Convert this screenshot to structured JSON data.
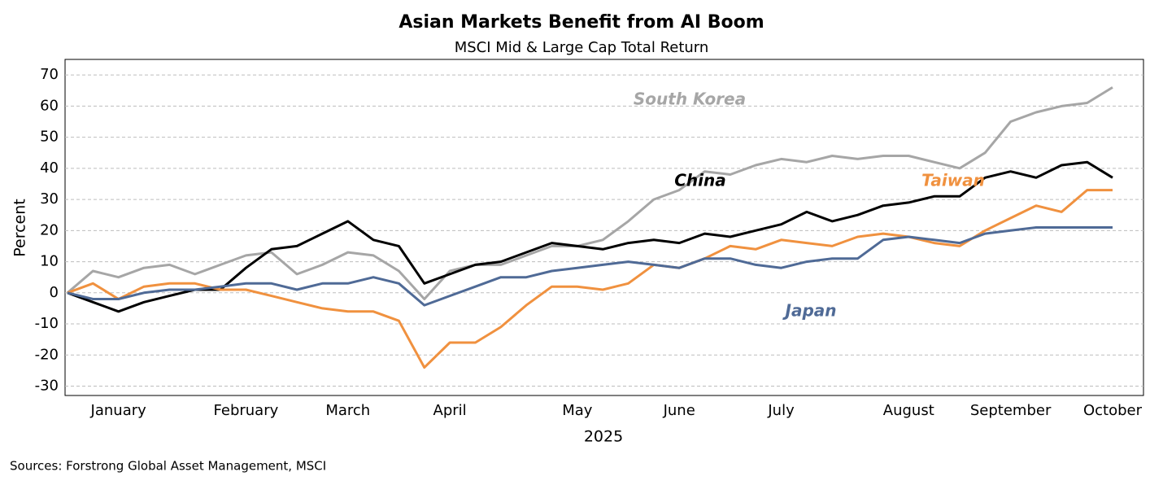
{
  "chart_data": {
    "type": "line",
    "title": "Asian Markets Benefit from AI Boom",
    "subtitle": "MSCI Mid & Large Cap Total Return",
    "y_label": "Percent",
    "x_label": "2025",
    "source": "Sources: Forstrong Global Asset Management, MSCI",
    "categories": [
      null,
      null,
      "January",
      null,
      null,
      null,
      null,
      "February",
      null,
      null,
      null,
      "March",
      null,
      null,
      null,
      "April",
      null,
      null,
      null,
      null,
      "May",
      null,
      null,
      null,
      "June",
      null,
      null,
      null,
      "July",
      null,
      null,
      null,
      null,
      "August",
      null,
      null,
      null,
      "September",
      null,
      null,
      null,
      "October"
    ],
    "series": [
      {
        "name": "South Korea",
        "color": "#a6a6a6",
        "values": [
          0,
          7,
          5,
          8,
          9,
          6,
          9,
          12,
          13,
          6,
          9,
          13,
          12,
          7,
          -2,
          7,
          9,
          9,
          12,
          15,
          15,
          17,
          23,
          30,
          33,
          39,
          38,
          41,
          43,
          42,
          44,
          43,
          44,
          44,
          42,
          40,
          45,
          55,
          58,
          60,
          61,
          66
        ]
      },
      {
        "name": "China",
        "color": "#000000",
        "values": [
          0,
          -3,
          -6,
          -3,
          -1,
          1,
          1,
          8,
          14,
          15,
          19,
          23,
          17,
          15,
          3,
          6,
          9,
          10,
          13,
          16,
          15,
          14,
          16,
          17,
          16,
          19,
          18,
          20,
          22,
          26,
          23,
          25,
          28,
          29,
          31,
          31,
          37,
          39,
          37,
          41,
          42,
          37
        ]
      },
      {
        "name": "Taiwan",
        "color": "#f0913f",
        "values": [
          0,
          3,
          -2,
          2,
          3,
          3,
          1,
          1,
          -1,
          -3,
          -5,
          -6,
          -6,
          -9,
          -24,
          -16,
          -16,
          -11,
          -4,
          2,
          2,
          1,
          3,
          9,
          8,
          11,
          15,
          14,
          17,
          16,
          15,
          18,
          19,
          18,
          16,
          15,
          20,
          24,
          28,
          26,
          33,
          33
        ]
      },
      {
        "name": "Japan",
        "color": "#4f6a96",
        "values": [
          0,
          -2,
          -2,
          0,
          1,
          1,
          2,
          3,
          3,
          1,
          3,
          3,
          5,
          3,
          -4,
          -1,
          2,
          5,
          5,
          7,
          8,
          9,
          10,
          9,
          8,
          11,
          11,
          9,
          8,
          10,
          11,
          11,
          17,
          18,
          17,
          16,
          19,
          20,
          21,
          21,
          21,
          21
        ]
      }
    ],
    "ylim": [
      -33,
      75
    ],
    "yticks": [
      -30,
      -20,
      -10,
      0,
      10,
      20,
      30,
      40,
      50,
      60,
      70
    ],
    "grid": true
  }
}
